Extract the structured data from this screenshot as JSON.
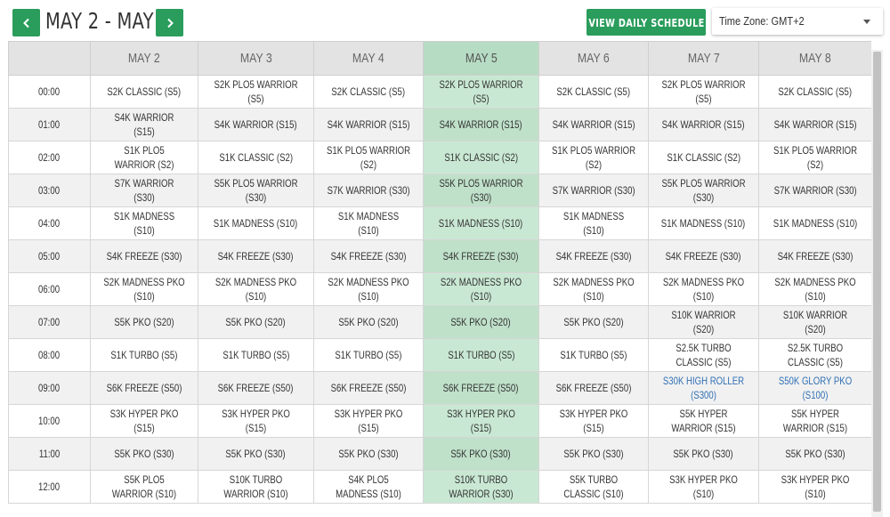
{
  "header": {
    "date_range": "MAY 2 - MAY 8",
    "view_button": "VIEW DAILY SCHEDULE",
    "timezone": "Time Zone: GMT+2"
  },
  "columns": [
    "MAY 2",
    "MAY 3",
    "MAY 4",
    "MAY 5",
    "MAY 6",
    "MAY 7",
    "MAY 8"
  ],
  "highlight_column": 3,
  "colors": {
    "accent": "#2a9d5c",
    "highlight": "#c9e8d3",
    "link": "#2f6fb5"
  },
  "rows": [
    {
      "time": "00:00",
      "cells": [
        "S2K CLASSIC (S5)",
        "S2K PLO5 WARRIOR (S5)",
        "S2K CLASSIC (S5)",
        "S2K PLO5 WARRIOR (S5)",
        "S2K CLASSIC (S5)",
        "S2K PLO5 WARRIOR (S5)",
        "S2K CLASSIC (S5)"
      ]
    },
    {
      "time": "01:00",
      "cells": [
        "S4K WARRIOR (S15)",
        "S4K WARRIOR (S15)",
        "S4K WARRIOR (S15)",
        "S4K WARRIOR (S15)",
        "S4K WARRIOR (S15)",
        "S4K WARRIOR (S15)",
        "S4K WARRIOR (S15)"
      ]
    },
    {
      "time": "02:00",
      "cells": [
        "S1K PLO5 WARRIOR (S2)",
        "S1K CLASSIC (S2)",
        "S1K PLO5 WARRIOR (S2)",
        "S1K CLASSIC (S2)",
        "S1K PLO5 WARRIOR (S2)",
        "S1K CLASSIC (S2)",
        "S1K PLO5 WARRIOR (S2)"
      ]
    },
    {
      "time": "03:00",
      "cells": [
        "S7K WARRIOR (S30)",
        "S5K PLO5 WARRIOR (S30)",
        "S7K WARRIOR (S30)",
        "S5K PLO5 WARRIOR (S30)",
        "S7K WARRIOR (S30)",
        "S5K PLO5 WARRIOR (S30)",
        "S7K WARRIOR (S30)"
      ]
    },
    {
      "time": "04:00",
      "cells": [
        "S1K MADNESS (S10)",
        "S1K MADNESS (S10)",
        "S1K MADNESS (S10)",
        "S1K MADNESS (S10)",
        "S1K MADNESS (S10)",
        "S1K MADNESS (S10)",
        "S1K MADNESS (S10)"
      ]
    },
    {
      "time": "05:00",
      "cells": [
        "S4K FREEZE (S30)",
        "S4K FREEZE (S30)",
        "S4K FREEZE (S30)",
        "S4K FREEZE (S30)",
        "S4K FREEZE (S30)",
        "S4K FREEZE (S30)",
        "S4K FREEZE (S30)"
      ]
    },
    {
      "time": "06:00",
      "cells": [
        "S2K MADNESS PKO (S10)",
        "S2K MADNESS PKO (S10)",
        "S2K MADNESS PKO (S10)",
        "S2K MADNESS PKO (S10)",
        "S2K MADNESS PKO (S10)",
        "S2K MADNESS PKO (S10)",
        "S2K MADNESS PKO (S10)"
      ]
    },
    {
      "time": "07:00",
      "cells": [
        "S5K PKO (S20)",
        "S5K PKO (S20)",
        "S5K PKO (S20)",
        "S5K PKO (S20)",
        "S5K PKO (S20)",
        "S10K WARRIOR (S20)",
        "S10K WARRIOR (S20)"
      ]
    },
    {
      "time": "08:00",
      "cells": [
        "S1K TURBO (S5)",
        "S1K TURBO (S5)",
        "S1K TURBO (S5)",
        "S1K TURBO (S5)",
        "S1K TURBO (S5)",
        "S2.5K TURBO CLASSIC (S5)",
        "S2.5K TURBO CLASSIC (S5)"
      ]
    },
    {
      "time": "09:00",
      "cells": [
        "S6K FREEZE (S50)",
        "S6K FREEZE (S50)",
        "S6K FREEZE (S50)",
        "S6K FREEZE (S50)",
        "S6K FREEZE (S50)",
        "S30K HIGH ROLLER (S300)",
        "S50K GLORY PKO (S100)"
      ],
      "links": [
        5,
        6
      ]
    },
    {
      "time": "10:00",
      "cells": [
        "S3K HYPER PKO (S15)",
        "S3K HYPER PKO (S15)",
        "S3K HYPER PKO (S15)",
        "S3K HYPER PKO (S15)",
        "S3K HYPER PKO (S15)",
        "S5K HYPER WARRIOR (S15)",
        "S5K HYPER WARRIOR (S15)"
      ]
    },
    {
      "time": "11:00",
      "cells": [
        "S5K PKO (S30)",
        "S5K PKO (S30)",
        "S5K PKO (S30)",
        "S5K PKO (S30)",
        "S5K PKO (S30)",
        "S5K PKO (S30)",
        "S5K PKO (S30)"
      ]
    },
    {
      "time": "12:00",
      "cells": [
        "S5K PLO5 WARRIOR (S10)",
        "S10K TURBO WARRIOR (S10)",
        "S4K PLO5 MADNESS (S10)",
        "S10K TURBO WARRIOR (S30)",
        "S5K TURBO CLASSIC (S10)",
        "S3K HYPER PKO (S10)",
        "S3K HYPER PKO (S10)"
      ]
    }
  ]
}
